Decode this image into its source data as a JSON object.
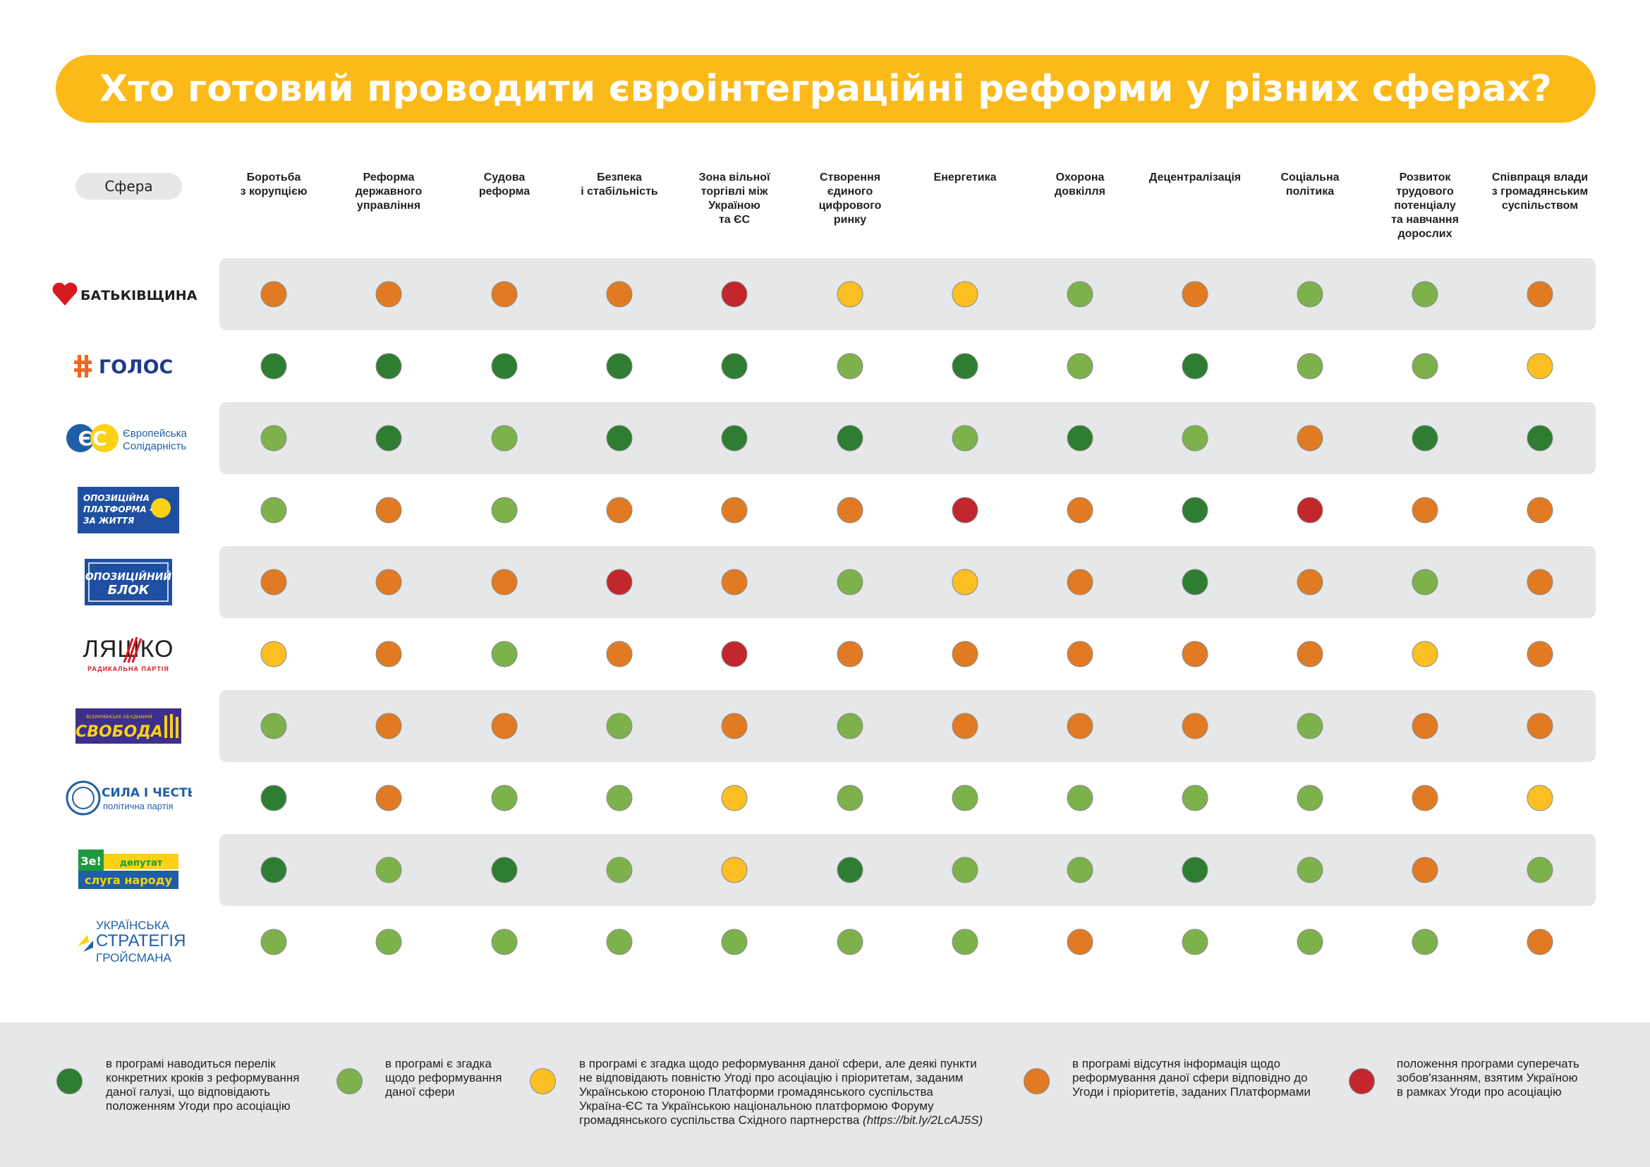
{
  "title": "Хто готовий проводити євроінтеграційні реформи у різних сферах?",
  "sphere_label": "Сфера",
  "columns": [
    "Боротьба\nз корупцією",
    "Реформа\nдержавного\nуправління",
    "Судова\nреформа",
    "Безпека\nі стабільність",
    "Зона вільної\nторгівлі між\nУкраїною\nта ЄС",
    "Створення\nєдиного\nцифрового\nринку",
    "Енергетика",
    "Охорона\nдовкілля",
    "Децентралізація",
    "Соціальна\nполітика",
    "Розвиток\nтрудового\nпотенціалу\nта навчання\nдорослих",
    "Співпраця влади\nз громадянським\nсуспільством"
  ],
  "colors": {
    "1": "#2f7d32",
    "2": "#7db14c",
    "3": "#fbbf24",
    "4": "#e07b24",
    "5": "#c1272d"
  },
  "accent": "#fbba1a",
  "parties": [
    {
      "name": "БАТЬКІВЩИНА",
      "logo": "batkivshchyna-logo",
      "levels": [
        4,
        4,
        4,
        4,
        5,
        3,
        3,
        2,
        4,
        2,
        2,
        4
      ]
    },
    {
      "name": "ГОЛОС",
      "logo": "holos-logo",
      "levels": [
        1,
        1,
        1,
        1,
        1,
        2,
        1,
        2,
        1,
        2,
        2,
        3
      ]
    },
    {
      "name": "Європейська\nСолідарність",
      "short": "ЄС",
      "logo": "es-logo",
      "levels": [
        2,
        1,
        2,
        1,
        1,
        1,
        2,
        1,
        2,
        4,
        1,
        1
      ]
    },
    {
      "name": "ОПОЗИЦІЙНА\nПЛАТФОРМА -\nЗА ЖИТТЯ",
      "logo": "opzzh-logo",
      "levels": [
        2,
        4,
        2,
        4,
        4,
        4,
        5,
        4,
        1,
        5,
        4,
        4
      ]
    },
    {
      "name": "ОПОЗИЦІЙНИЙ\nБЛОК",
      "logo": "opoblok-logo",
      "levels": [
        4,
        4,
        4,
        5,
        4,
        2,
        3,
        4,
        1,
        4,
        2,
        4
      ]
    },
    {
      "name": "ЛЯШКО",
      "sub": "РАДИКАЛЬНА ПАРТІЯ",
      "logo": "lyashko-logo",
      "levels": [
        3,
        4,
        2,
        4,
        5,
        4,
        4,
        4,
        4,
        4,
        3,
        4
      ]
    },
    {
      "name": "СВОБОДА",
      "sub": "ВСЕУКРАЇНСЬКЕ ОБ'ЄДНАННЯ",
      "logo": "svoboda-logo",
      "levels": [
        2,
        4,
        4,
        2,
        4,
        2,
        4,
        4,
        4,
        2,
        4,
        4
      ]
    },
    {
      "name": "СИЛА І ЧЕСТЬ",
      "sub": "політична партія",
      "logo": "syla-i-chest-logo",
      "levels": [
        1,
        4,
        2,
        2,
        3,
        2,
        2,
        2,
        2,
        2,
        4,
        3
      ]
    },
    {
      "name": "Зе! депутат",
      "sub": "слуга народу",
      "logo": "sluha-narodu-logo",
      "levels": [
        1,
        2,
        1,
        2,
        3,
        1,
        2,
        2,
        1,
        2,
        4,
        2
      ]
    },
    {
      "name": "УКРАЇНСЬКА\nСТРАТЕГІЯ\nГРОЙСМАНА",
      "logo": "ukr-stratehiya-logo",
      "levels": [
        2,
        2,
        2,
        2,
        2,
        2,
        2,
        4,
        2,
        2,
        2,
        4
      ]
    }
  ],
  "legend": [
    {
      "level": 1,
      "text": "в програмі наводиться перелік\nконкретних кроків з реформування\nданої галузі, що відповідають\nположенням Угоди про асоціацію"
    },
    {
      "level": 2,
      "text": "в програмі є згадка\nщодо реформування\nданої сфери"
    },
    {
      "level": 3,
      "text": "в програмі є згадка щодо реформування даної сфери, але деякі пункти\nне відповідають повністю Угоді про асоціацію і пріоритетам, заданим\nУкраїнською стороною Платформи громадянського суспільства\nУкраїна-ЄС та Українською національною платформою Форуму\nгромадянського суспільства Східного партнерства",
      "link": "(https://bit.ly/2LcAJ5S)"
    },
    {
      "level": 4,
      "text": "в програмі відсутня інформація щодо\nреформування даної сфери відповідно до\nУгоди і пріоритетів, заданих Платформами"
    },
    {
      "level": 5,
      "text": "положення програми суперечать\nзобов'язанням, взятим Україною\nв рамках Угоди про асоціацію"
    }
  ]
}
